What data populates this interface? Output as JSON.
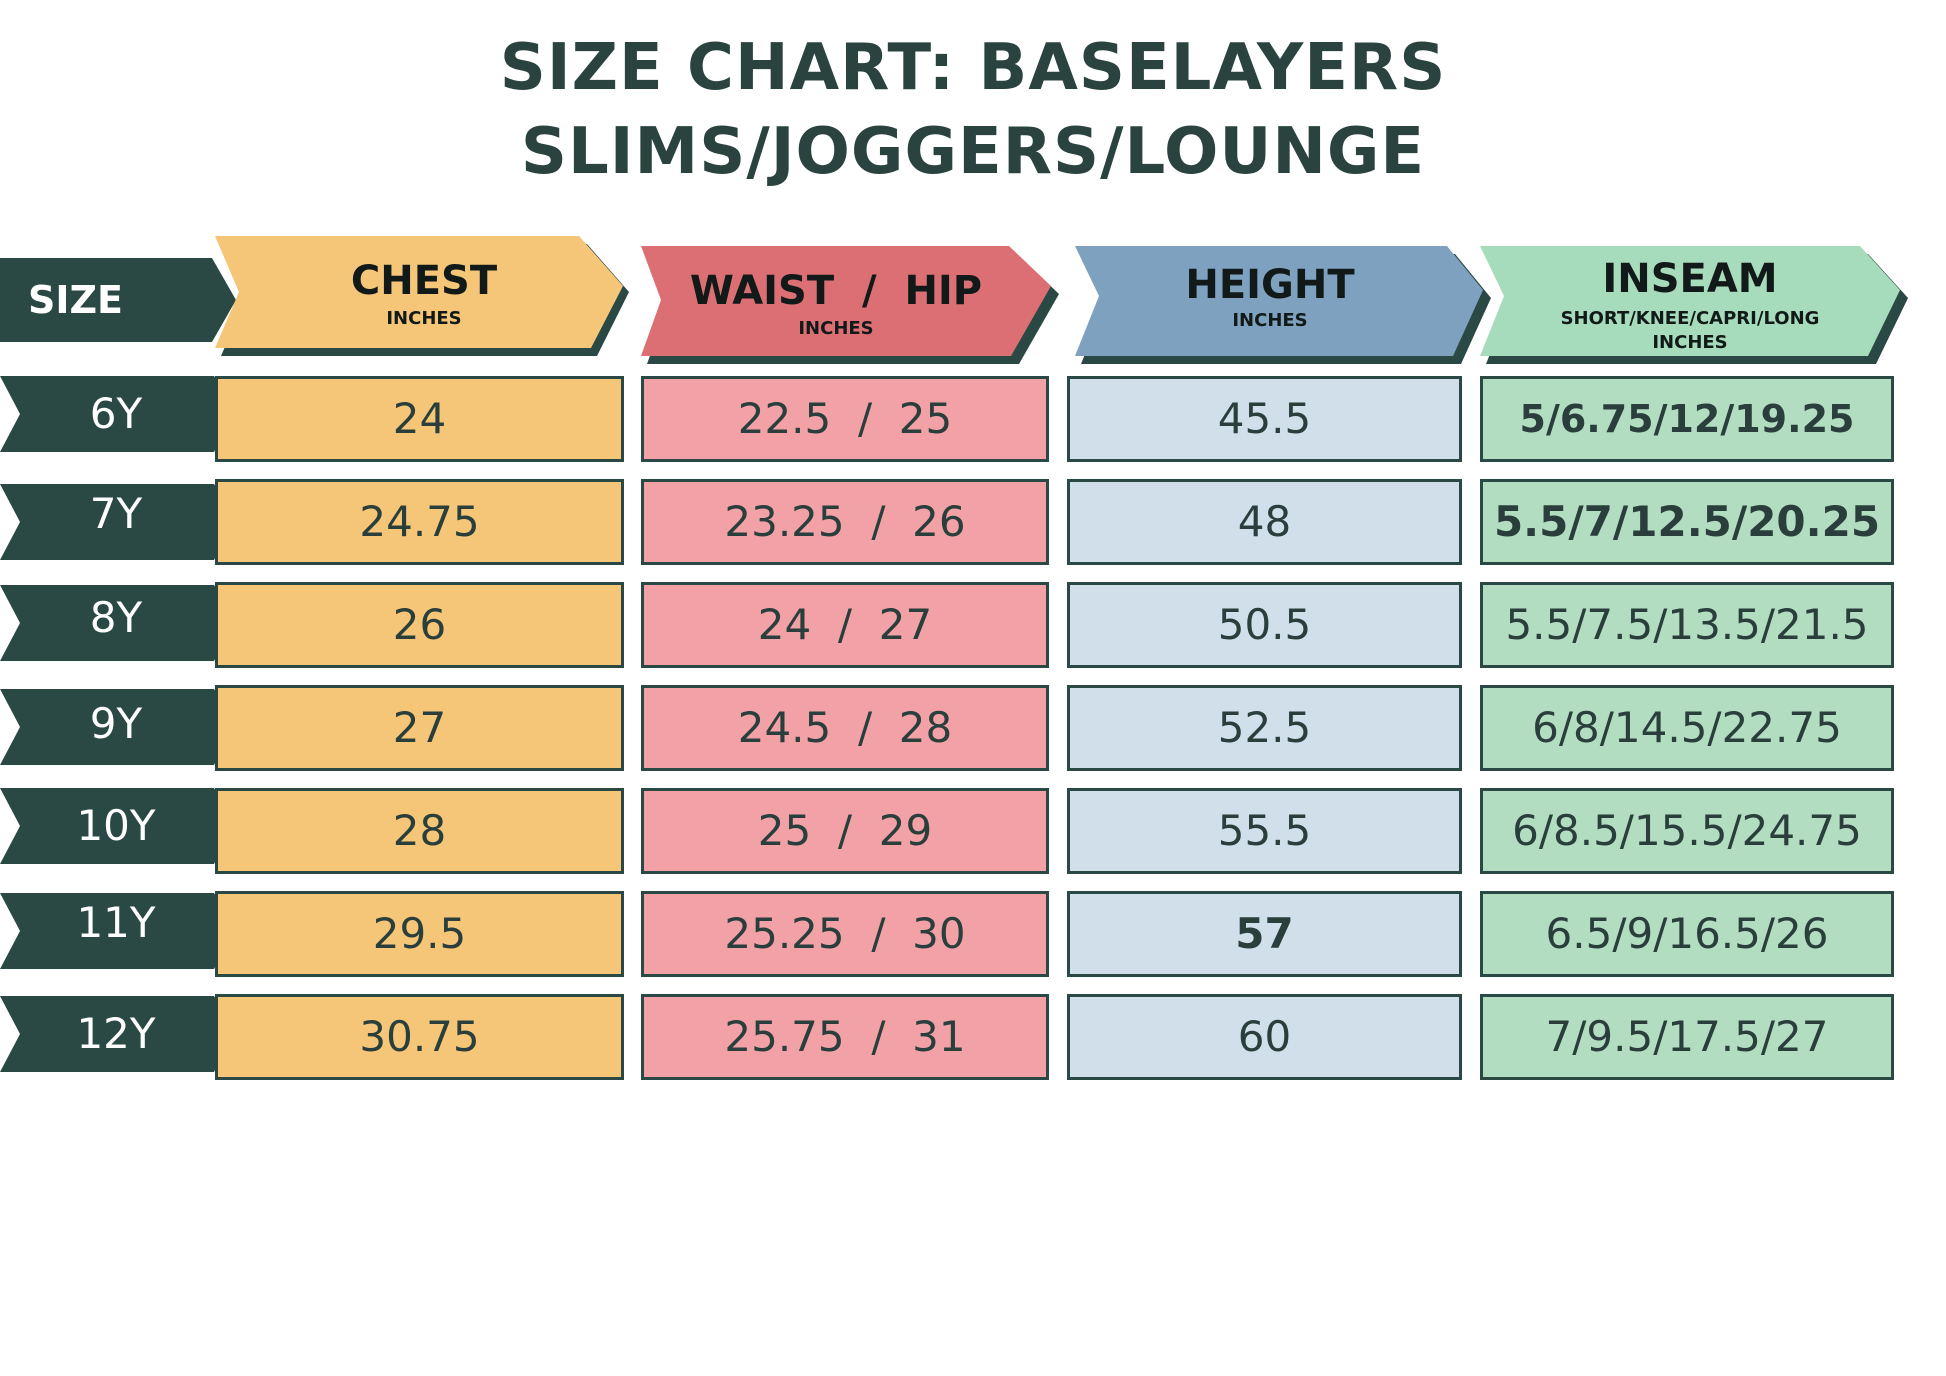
{
  "title": {
    "line1": "SIZE CHART: BASELAYERS",
    "line2": "SLIMS/JOGGERS/LOUNGE"
  },
  "headers": {
    "size": "SIZE",
    "chest": {
      "label": "CHEST",
      "unit": "INCHES"
    },
    "waist_hip": {
      "label": "WAIST  /  HIP",
      "unit": "INCHES"
    },
    "height": {
      "label": "HEIGHT",
      "unit": "INCHES"
    },
    "inseam": {
      "label": "INSEAM",
      "sub": "SHORT/KNEE/CAPRI/LONG",
      "unit": "INCHES"
    }
  },
  "rows": [
    {
      "size": "6Y",
      "chest": "24",
      "waist_hip": "22.5  /  25",
      "height": "45.5",
      "inseam": "5/6.75/12/19.25"
    },
    {
      "size": "7Y",
      "chest": "24.75",
      "waist_hip": "23.25  /  26",
      "height": "48",
      "inseam": "5.5/7/12.5/20.25"
    },
    {
      "size": "8Y",
      "chest": "26",
      "waist_hip": "24  /  27",
      "height": "50.5",
      "inseam": "5.5/7.5/13.5/21.5"
    },
    {
      "size": "9Y",
      "chest": "27",
      "waist_hip": "24.5  /  28",
      "height": "52.5",
      "inseam": "6/8/14.5/22.75"
    },
    {
      "size": "10Y",
      "chest": "28",
      "waist_hip": "25  /  29",
      "height": "55.5",
      "inseam": "6/8.5/15.5/24.75"
    },
    {
      "size": "11Y",
      "chest": "29.5",
      "waist_hip": "25.25  /  30",
      "height": "57",
      "inseam": "6.5/9/16.5/26"
    },
    {
      "size": "12Y",
      "chest": "30.75",
      "waist_hip": "25.75  /  31",
      "height": "60",
      "inseam": "7/9.5/17.5/27"
    }
  ],
  "colors": {
    "dark_green": "#2b4944",
    "chest": "#f5c677",
    "waist_hip_header": "#dc6f74",
    "waist_hip": "#f2a2a6",
    "height_header": "#7fa1c0",
    "height": "#d1dfeb",
    "inseam_header": "#a6dbbb",
    "inseam": "#b2ddc1"
  }
}
